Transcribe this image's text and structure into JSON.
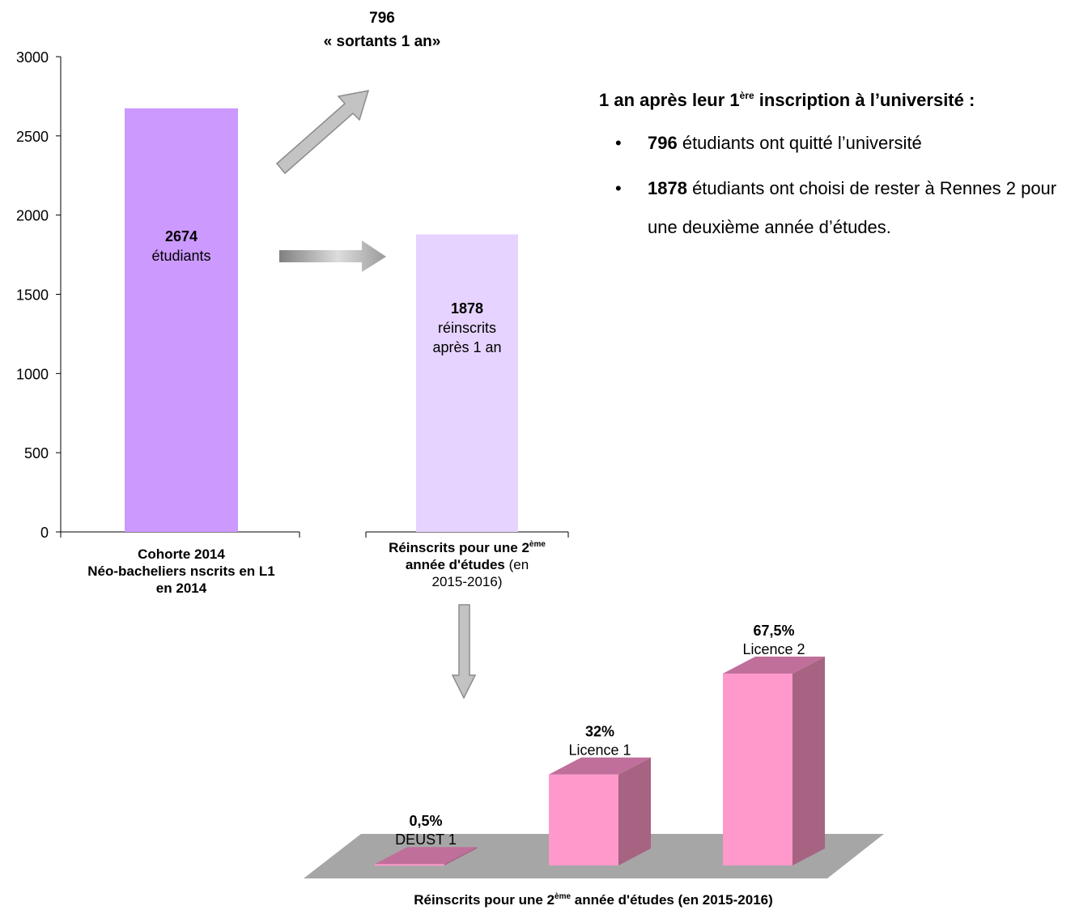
{
  "summary": {
    "title_pre": "1 an après leur 1",
    "title_sup": "ère",
    "title_post": " inscription à l’université :",
    "bullets": [
      {
        "bold": "796",
        "text": " étudiants ont quitté l’université"
      },
      {
        "bold": "1878",
        "text": " étudiants ont choisi de rester à Rennes 2 pour une deuxième année d’études."
      }
    ]
  },
  "chart_data": [
    {
      "type": "bar",
      "ylim": [
        0,
        3000
      ],
      "yticks": [
        0,
        500,
        1000,
        1500,
        2000,
        2500,
        3000
      ],
      "colors": [
        "#cc99ff",
        "#e6d3ff"
      ],
      "categories": [
        {
          "lines": [
            [
              {
                "t": "Cohorte 2014",
                "b": true
              }
            ],
            [
              {
                "t": "Néo-bacheliers nscrits en L1",
                "b": true
              }
            ],
            [
              {
                "t": "en 2014",
                "b": true
              }
            ]
          ]
        },
        {
          "lines": [
            [
              {
                "t": "Réinscrits pour une 2",
                "b": true
              },
              {
                "t": "ème",
                "b": true,
                "sup": true
              }
            ],
            [
              {
                "t": "année d'études",
                "b": true
              },
              {
                "t": " (en",
                "b": false
              }
            ],
            [
              {
                "t": "2015-2016)",
                "b": false
              }
            ]
          ]
        }
      ],
      "values": [
        2674,
        1878
      ],
      "data_labels": [
        {
          "value": "2674",
          "text": "étudiants"
        },
        {
          "value": "1878",
          "text": "réinscrits",
          "text2": "après  1 an"
        }
      ],
      "annotation": {
        "value": "796",
        "text": "« sortants 1 an»"
      }
    },
    {
      "type": "bar",
      "style": "3d",
      "colors": {
        "front": "#ff99cc",
        "side": "#a66482",
        "top": "#c06f9b",
        "floor": "#a6a6a6"
      },
      "categories": [
        "DEUST 1",
        "Licence 1",
        "Licence 2"
      ],
      "values": [
        0.5,
        32,
        67.5
      ],
      "value_labels": [
        "0,5%",
        "32%",
        "67,5%"
      ],
      "title_pre": "Réinscrits pour une 2",
      "title_sup": "ème",
      "title_post": " année d'études  (en 2015-2016)"
    }
  ]
}
